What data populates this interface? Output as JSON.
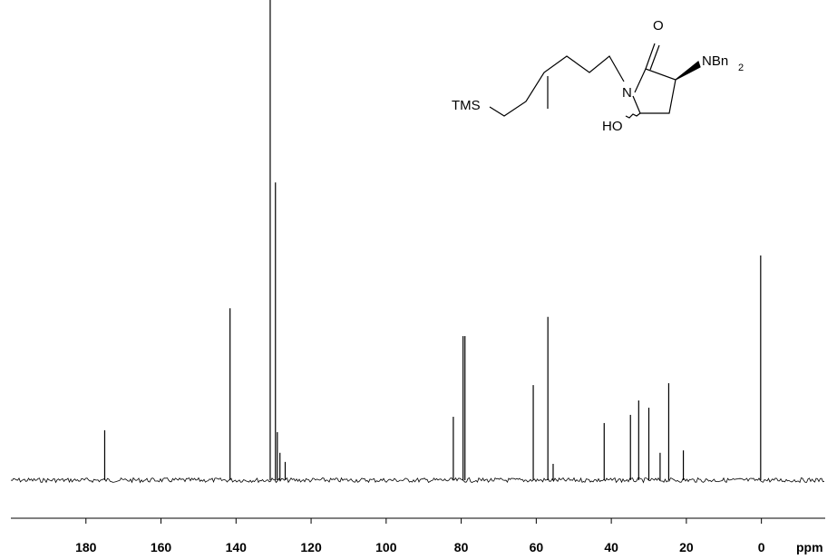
{
  "chart_data": {
    "type": "spectrum",
    "xlabel": "ppm",
    "xlim": [
      200,
      -17
    ],
    "xticks": [
      180,
      160,
      140,
      120,
      100,
      80,
      60,
      40,
      20,
      0
    ],
    "ylim": [
      0,
      100
    ],
    "color": "#000000",
    "x": [
      175.0,
      141.6,
      130.9,
      129.5,
      129.0,
      128.3,
      126.9,
      82.1,
      79.5,
      79.0,
      60.8,
      56.9,
      55.5,
      41.9,
      34.9,
      32.7,
      30.0,
      27.0,
      24.7,
      20.8,
      0.2
    ],
    "values": [
      10.4,
      35.8,
      100,
      62,
      10,
      5.7,
      3.8,
      13.2,
      30,
      30,
      19.8,
      34,
      3.4,
      11.9,
      13.6,
      16.6,
      15.1,
      5.7,
      20.2,
      6.2,
      46.8
    ],
    "structure_labels": [
      "O",
      "N",
      "NBn",
      "2",
      "TMS",
      "HO"
    ]
  }
}
